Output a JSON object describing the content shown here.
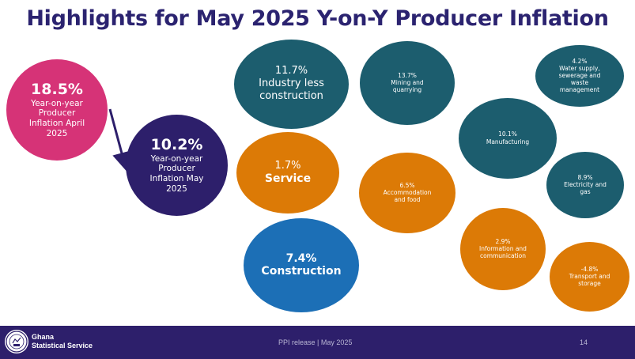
{
  "title": "Highlights for May 2025 Y-on-Y Producer Inflation",
  "bubbles": {
    "april": {
      "value": "18.5%",
      "label": "Year-on-year Producer Inflation April 2025"
    },
    "may": {
      "value": "10.2%",
      "label": "Year-on-year Producer Inflation May 2025"
    },
    "industry": {
      "value": "11.7%",
      "label": "Industry less construction"
    },
    "service": {
      "value": "1.7%",
      "label": "Service"
    },
    "construction": {
      "value": "7.4%",
      "label": "Construction"
    },
    "mining": {
      "value": "13.7%",
      "label": "Mining and quarrying"
    },
    "water": {
      "value": "4.2%",
      "label": "Water supply, sewerage and waste management"
    },
    "manufacturing": {
      "value": "10.1%",
      "label": "Manufacturing"
    },
    "electricity": {
      "value": "8.9%",
      "label": "Electricity and gas"
    },
    "accommodation": {
      "value": "6.5%",
      "label": "Accommodation and food"
    },
    "information": {
      "value": "2.9%",
      "label": "Information and communication"
    },
    "transport": {
      "value": "-4.8%",
      "label": "Transport and storage"
    }
  },
  "footer": {
    "org_line1": "Ghana",
    "org_line2": "Statistical Service",
    "release": "PPI release | May 2025",
    "page": "14"
  },
  "colors": {
    "title": "#2b2370",
    "teal": "#1c5d6e",
    "orange": "#dc7a06",
    "blue": "#1c6fb6",
    "magenta": "#d63377",
    "purple": "#2d1f6b",
    "footer_bg": "#2d1f6b"
  }
}
